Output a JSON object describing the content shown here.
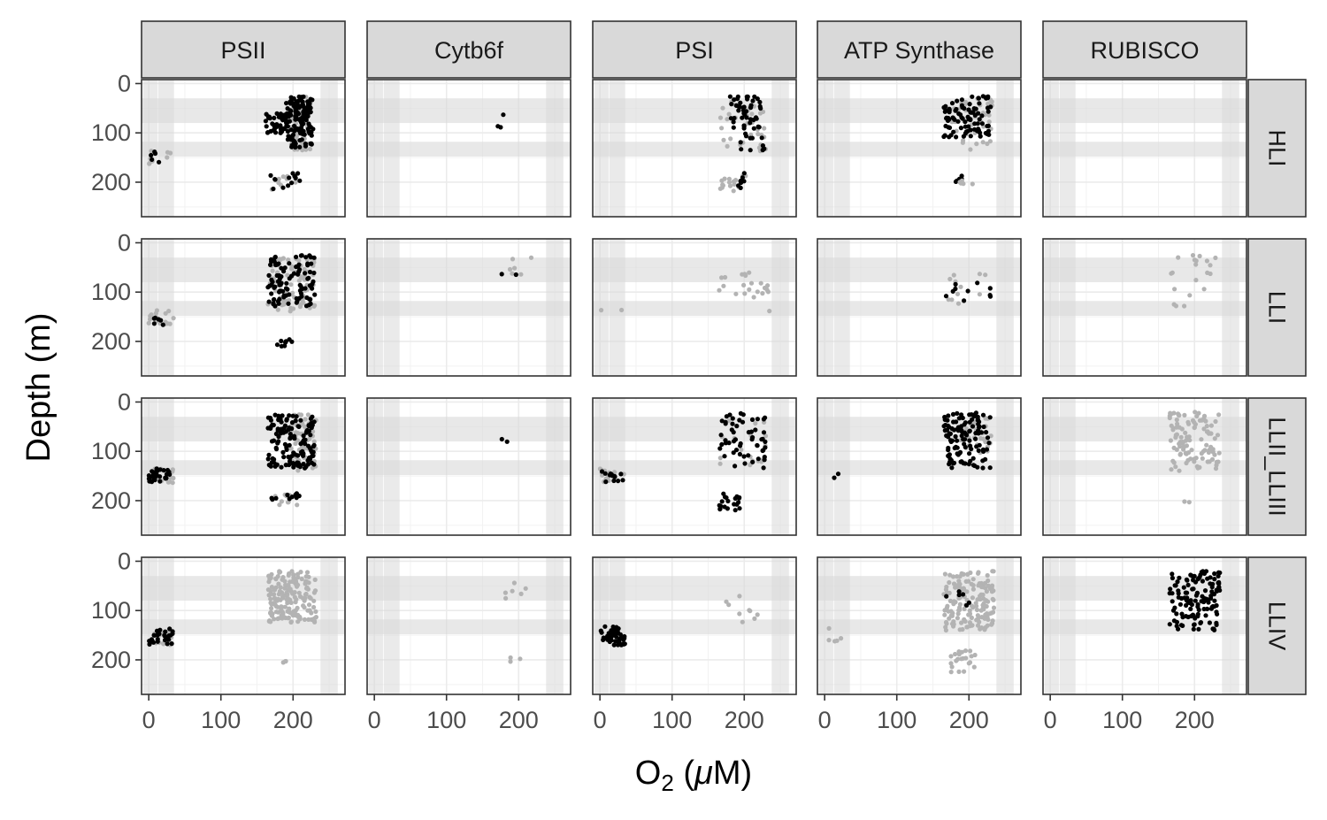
{
  "chart_data": {
    "type": "scatter",
    "title": "",
    "xlabel": {
      "main": "O",
      "sub": "2",
      "rest": " (",
      "mu": "μ",
      "end": "M)"
    },
    "ylabel": "Depth (m)",
    "xlim": [
      -10,
      272
    ],
    "ylim": [
      270,
      -8
    ],
    "y_reversed": true,
    "x_ticks": [
      0,
      100,
      200
    ],
    "x_tick_labels": [
      "0",
      "100",
      "200"
    ],
    "y_ticks": [
      0,
      100,
      200
    ],
    "y_tick_labels": [
      "0",
      "100",
      "200"
    ],
    "grid": true,
    "legend": "none",
    "columns": [
      "PSII",
      "Cytb6f",
      "PSI",
      "ATP Synthase",
      "RUBISCO"
    ],
    "rows": [
      "HLI",
      "LLI",
      "LLII_LLIII",
      "LLIV"
    ],
    "colors": {
      "primary": "#000000",
      "secondary": "#b3b3b3",
      "band": "#d9d9d9",
      "strip": "#d9d9d9"
    },
    "bands": {
      "y_ranges": [
        [
          30,
          80
        ],
        [
          118,
          148
        ]
      ],
      "x_ranges": [
        [
          -8,
          12
        ],
        [
          13,
          35
        ],
        [
          238,
          262
        ]
      ]
    },
    "clusters": [
      {
        "row": 0,
        "col": 0,
        "color": "secondary",
        "x": [
          195,
          225
        ],
        "y": [
          25,
          135
        ],
        "n": 80
      },
      {
        "row": 0,
        "col": 0,
        "color": "primary",
        "x": [
          190,
          228
        ],
        "y": [
          25,
          130
        ],
        "n": 130
      },
      {
        "row": 0,
        "col": 0,
        "color": "primary",
        "x": [
          162,
          195
        ],
        "y": [
          60,
          100
        ],
        "n": 45
      },
      {
        "row": 0,
        "col": 0,
        "color": "secondary",
        "x": [
          0,
          30
        ],
        "y": [
          135,
          165
        ],
        "n": 8
      },
      {
        "row": 0,
        "col": 0,
        "color": "primary",
        "x": [
          0,
          15
        ],
        "y": [
          132,
          160
        ],
        "n": 5
      },
      {
        "row": 0,
        "col": 0,
        "color": "secondary",
        "x": [
          170,
          205
        ],
        "y": [
          185,
          215
        ],
        "n": 10
      },
      {
        "row": 0,
        "col": 0,
        "color": "primary",
        "x": [
          168,
          210
        ],
        "y": [
          180,
          215
        ],
        "n": 14
      },
      {
        "row": 0,
        "col": 1,
        "color": "primary",
        "x": [
          170,
          200
        ],
        "y": [
          63,
          92
        ],
        "n": 3
      },
      {
        "row": 0,
        "col": 2,
        "color": "secondary",
        "x": [
          165,
          230
        ],
        "y": [
          30,
          140
        ],
        "n": 35
      },
      {
        "row": 0,
        "col": 2,
        "color": "primary",
        "x": [
          180,
          225
        ],
        "y": [
          25,
          95
        ],
        "n": 45
      },
      {
        "row": 0,
        "col": 2,
        "color": "primary",
        "x": [
          195,
          228
        ],
        "y": [
          100,
          135
        ],
        "n": 12
      },
      {
        "row": 0,
        "col": 2,
        "color": "secondary",
        "x": [
          165,
          205
        ],
        "y": [
          185,
          220
        ],
        "n": 16
      },
      {
        "row": 0,
        "col": 2,
        "color": "primary",
        "x": [
          175,
          205
        ],
        "y": [
          180,
          215
        ],
        "n": 8
      },
      {
        "row": 0,
        "col": 3,
        "color": "secondary",
        "x": [
          175,
          232
        ],
        "y": [
          30,
          135
        ],
        "n": 40
      },
      {
        "row": 0,
        "col": 3,
        "color": "primary",
        "x": [
          165,
          230
        ],
        "y": [
          25,
          110
        ],
        "n": 90
      },
      {
        "row": 0,
        "col": 3,
        "color": "primary",
        "x": [
          178,
          195
        ],
        "y": [
          185,
          205
        ],
        "n": 5
      },
      {
        "row": 0,
        "col": 3,
        "color": "secondary",
        "x": [
          185,
          205
        ],
        "y": [
          185,
          215
        ],
        "n": 5
      },
      {
        "row": 1,
        "col": 0,
        "color": "secondary",
        "x": [
          165,
          230
        ],
        "y": [
          30,
          140
        ],
        "n": 90
      },
      {
        "row": 1,
        "col": 0,
        "color": "primary",
        "x": [
          165,
          230
        ],
        "y": [
          25,
          130
        ],
        "n": 100
      },
      {
        "row": 1,
        "col": 0,
        "color": "secondary",
        "x": [
          0,
          35
        ],
        "y": [
          135,
          165
        ],
        "n": 18
      },
      {
        "row": 1,
        "col": 0,
        "color": "primary",
        "x": [
          0,
          22
        ],
        "y": [
          150,
          170
        ],
        "n": 6
      },
      {
        "row": 1,
        "col": 0,
        "color": "primary",
        "x": [
          170,
          210
        ],
        "y": [
          195,
          210
        ],
        "n": 8
      },
      {
        "row": 1,
        "col": 1,
        "color": "secondary",
        "x": [
          185,
          225
        ],
        "y": [
          30,
          65
        ],
        "n": 6
      },
      {
        "row": 1,
        "col": 1,
        "color": "primary",
        "x": [
          170,
          198
        ],
        "y": [
          58,
          65
        ],
        "n": 2
      },
      {
        "row": 1,
        "col": 2,
        "color": "secondary",
        "x": [
          165,
          235
        ],
        "y": [
          60,
          140
        ],
        "n": 22
      },
      {
        "row": 1,
        "col": 2,
        "color": "secondary",
        "x": [
          0,
          35
        ],
        "y": [
          135,
          140
        ],
        "n": 2
      },
      {
        "row": 1,
        "col": 3,
        "color": "secondary",
        "x": [
          165,
          232
        ],
        "y": [
          60,
          140
        ],
        "n": 12
      },
      {
        "row": 1,
        "col": 3,
        "color": "primary",
        "x": [
          165,
          232
        ],
        "y": [
          80,
          130
        ],
        "n": 10
      },
      {
        "row": 1,
        "col": 4,
        "color": "secondary",
        "x": [
          165,
          232
        ],
        "y": [
          25,
          130
        ],
        "n": 20
      },
      {
        "row": 2,
        "col": 0,
        "color": "secondary",
        "x": [
          195,
          232
        ],
        "y": [
          25,
          140
        ],
        "n": 70
      },
      {
        "row": 2,
        "col": 0,
        "color": "primary",
        "x": [
          165,
          230
        ],
        "y": [
          25,
          135
        ],
        "n": 130
      },
      {
        "row": 2,
        "col": 0,
        "color": "secondary",
        "x": [
          0,
          35
        ],
        "y": [
          135,
          165
        ],
        "n": 20
      },
      {
        "row": 2,
        "col": 0,
        "color": "primary",
        "x": [
          0,
          30
        ],
        "y": [
          135,
          162
        ],
        "n": 30
      },
      {
        "row": 2,
        "col": 0,
        "color": "secondary",
        "x": [
          175,
          210
        ],
        "y": [
          185,
          210
        ],
        "n": 10
      },
      {
        "row": 2,
        "col": 0,
        "color": "primary",
        "x": [
          165,
          210
        ],
        "y": [
          185,
          215
        ],
        "n": 10
      },
      {
        "row": 2,
        "col": 1,
        "color": "primary",
        "x": [
          170,
          185
        ],
        "y": [
          72,
          85
        ],
        "n": 2
      },
      {
        "row": 2,
        "col": 2,
        "color": "secondary",
        "x": [
          165,
          230
        ],
        "y": [
          25,
          135
        ],
        "n": 20
      },
      {
        "row": 2,
        "col": 2,
        "color": "primary",
        "x": [
          165,
          230
        ],
        "y": [
          20,
          135
        ],
        "n": 55
      },
      {
        "row": 2,
        "col": 2,
        "color": "secondary",
        "x": [
          0,
          35
        ],
        "y": [
          135,
          165
        ],
        "n": 14
      },
      {
        "row": 2,
        "col": 2,
        "color": "primary",
        "x": [
          0,
          32
        ],
        "y": [
          135,
          165
        ],
        "n": 14
      },
      {
        "row": 2,
        "col": 2,
        "color": "primary",
        "x": [
          165,
          195
        ],
        "y": [
          185,
          220
        ],
        "n": 20
      },
      {
        "row": 2,
        "col": 3,
        "color": "secondary",
        "x": [
          185,
          232
        ],
        "y": [
          25,
          110
        ],
        "n": 30
      },
      {
        "row": 2,
        "col": 3,
        "color": "primary",
        "x": [
          165,
          230
        ],
        "y": [
          22,
          135
        ],
        "n": 120
      },
      {
        "row": 2,
        "col": 3,
        "color": "primary",
        "x": [
          0,
          28
        ],
        "y": [
          130,
          160
        ],
        "n": 2
      },
      {
        "row": 2,
        "col": 4,
        "color": "secondary",
        "x": [
          165,
          235
        ],
        "y": [
          20,
          140
        ],
        "n": 110
      },
      {
        "row": 2,
        "col": 4,
        "color": "secondary",
        "x": [
          180,
          200
        ],
        "y": [
          200,
          208
        ],
        "n": 2
      },
      {
        "row": 3,
        "col": 0,
        "color": "secondary",
        "x": [
          165,
          232
        ],
        "y": [
          20,
          125
        ],
        "n": 180
      },
      {
        "row": 3,
        "col": 0,
        "color": "secondary",
        "x": [
          0,
          35
        ],
        "y": [
          140,
          170
        ],
        "n": 18
      },
      {
        "row": 3,
        "col": 0,
        "color": "primary",
        "x": [
          0,
          35
        ],
        "y": [
          135,
          170
        ],
        "n": 28
      },
      {
        "row": 3,
        "col": 0,
        "color": "secondary",
        "x": [
          170,
          195
        ],
        "y": [
          195,
          215
        ],
        "n": 3
      },
      {
        "row": 3,
        "col": 1,
        "color": "secondary",
        "x": [
          175,
          225
        ],
        "y": [
          40,
          80
        ],
        "n": 6
      },
      {
        "row": 3,
        "col": 1,
        "color": "secondary",
        "x": [
          175,
          205
        ],
        "y": [
          180,
          205
        ],
        "n": 3
      },
      {
        "row": 3,
        "col": 2,
        "color": "secondary",
        "x": [
          165,
          232
        ],
        "y": [
          70,
          140
        ],
        "n": 9
      },
      {
        "row": 3,
        "col": 2,
        "color": "primary",
        "x": [
          0,
          35
        ],
        "y": [
          132,
          170
        ],
        "n": 45
      },
      {
        "row": 3,
        "col": 3,
        "color": "secondary",
        "x": [
          165,
          235
        ],
        "y": [
          20,
          140
        ],
        "n": 160
      },
      {
        "row": 3,
        "col": 3,
        "color": "primary",
        "x": [
          165,
          210
        ],
        "y": [
          60,
          100
        ],
        "n": 6
      },
      {
        "row": 3,
        "col": 3,
        "color": "secondary",
        "x": [
          175,
          210
        ],
        "y": [
          180,
          225
        ],
        "n": 22
      },
      {
        "row": 3,
        "col": 3,
        "color": "secondary",
        "x": [
          0,
          30
        ],
        "y": [
          135,
          165
        ],
        "n": 5
      },
      {
        "row": 3,
        "col": 4,
        "color": "primary",
        "x": [
          165,
          235
        ],
        "y": [
          20,
          140
        ],
        "n": 130
      }
    ]
  }
}
